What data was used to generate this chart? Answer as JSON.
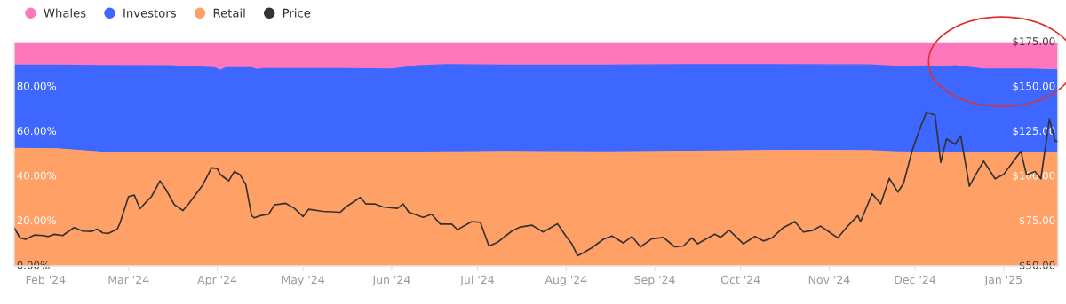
{
  "chart_data": {
    "type": "area",
    "stacked": true,
    "legend": "top left",
    "grid": false,
    "x": [
      "2024-01-21",
      "2024-02-05",
      "2024-02-20",
      "2024-03-15",
      "2024-03-31",
      "2024-04-02",
      "2024-04-04",
      "2024-04-13",
      "2024-04-15",
      "2024-04-17",
      "2024-05-15",
      "2024-05-25",
      "2024-06-01",
      "2024-06-10",
      "2024-06-20",
      "2024-07-10",
      "2024-08-15",
      "2024-09-15",
      "2024-10-15",
      "2024-11-15",
      "2024-11-25",
      "2024-12-05",
      "2024-12-10",
      "2024-12-15",
      "2024-12-25",
      "2025-01-10",
      "2025-01-20"
    ],
    "series": [
      {
        "name": "Retail",
        "color": "#ffa066",
        "values": [
          52.6,
          52.4,
          51.0,
          50.8,
          50.5,
          50.5,
          50.6,
          50.6,
          50.7,
          50.7,
          50.9,
          50.9,
          50.9,
          50.9,
          51.0,
          51.2,
          51.0,
          51.3,
          51.7,
          51.6,
          51.0,
          50.8,
          50.8,
          50.8,
          50.8,
          50.8,
          50.8
        ]
      },
      {
        "name": "Investors",
        "color": "#3d67ff",
        "values": [
          37.2,
          37.4,
          38.6,
          38.7,
          38.1,
          36.9,
          38.0,
          38.0,
          37.1,
          37.5,
          37.3,
          37.2,
          37.1,
          38.6,
          39.0,
          38.6,
          38.8,
          38.7,
          38.3,
          38.3,
          38.2,
          38.6,
          38.2,
          38.7,
          37.2,
          37.2,
          36.8
        ]
      },
      {
        "name": "Whales",
        "color": "#ff77bb",
        "values": [
          10.2,
          10.2,
          10.4,
          10.5,
          11.4,
          12.6,
          11.4,
          11.4,
          12.2,
          11.8,
          11.8,
          11.9,
          12.0,
          10.5,
          10.0,
          10.2,
          10.2,
          10.0,
          10.0,
          10.1,
          10.8,
          10.6,
          11.0,
          10.5,
          12.0,
          12.0,
          12.4
        ]
      },
      {
        "name": "Price",
        "type": "line",
        "axis": "y2",
        "color": "#333333",
        "x": [
          "2024-01-21",
          "2024-01-23",
          "2024-01-25",
          "2024-01-28",
          "2024-01-31",
          "2024-02-02",
          "2024-02-04",
          "2024-02-07",
          "2024-02-10",
          "2024-02-11",
          "2024-02-14",
          "2024-02-17",
          "2024-02-19",
          "2024-02-21",
          "2024-02-23",
          "2024-02-26",
          "2024-02-27",
          "2024-03-01",
          "2024-03-03",
          "2024-03-05",
          "2024-03-07",
          "2024-03-09",
          "2024-03-12",
          "2024-03-14",
          "2024-03-17",
          "2024-03-20",
          "2024-03-22",
          "2024-03-27",
          "2024-03-30",
          "2024-04-01",
          "2024-04-02",
          "2024-04-05",
          "2024-04-07",
          "2024-04-09",
          "2024-04-11",
          "2024-04-13",
          "2024-04-14",
          "2024-04-16",
          "2024-04-19",
          "2024-04-21",
          "2024-04-25",
          "2024-04-28",
          "2024-05-01",
          "2024-05-03",
          "2024-05-08",
          "2024-05-14",
          "2024-05-16",
          "2024-05-21",
          "2024-05-23",
          "2024-05-26",
          "2024-05-29",
          "2024-06-03",
          "2024-06-05",
          "2024-06-07",
          "2024-06-12",
          "2024-06-15",
          "2024-06-18",
          "2024-06-22",
          "2024-06-24",
          "2024-06-29",
          "2024-07-02",
          "2024-07-05",
          "2024-07-08",
          "2024-07-13",
          "2024-07-16",
          "2024-07-20",
          "2024-07-24",
          "2024-07-29",
          "2024-08-01",
          "2024-08-03",
          "2024-08-05",
          "2024-08-07",
          "2024-08-10",
          "2024-08-14",
          "2024-08-17",
          "2024-08-21",
          "2024-08-24",
          "2024-08-27",
          "2024-08-31",
          "2024-09-04",
          "2024-09-08",
          "2024-09-11",
          "2024-09-14",
          "2024-09-16",
          "2024-09-19",
          "2024-09-22",
          "2024-09-24",
          "2024-09-27",
          "2024-10-02",
          "2024-10-06",
          "2024-10-09",
          "2024-10-12",
          "2024-10-16",
          "2024-10-20",
          "2024-10-23",
          "2024-10-26",
          "2024-10-29",
          "2024-11-01",
          "2024-11-04",
          "2024-11-07",
          "2024-11-11",
          "2024-11-12",
          "2024-11-16",
          "2024-11-19",
          "2024-11-22",
          "2024-11-25",
          "2024-11-27",
          "2024-11-30",
          "2024-12-03",
          "2024-12-05",
          "2024-12-08",
          "2024-12-10",
          "2024-12-12",
          "2024-12-15",
          "2024-12-17",
          "2024-12-20",
          "2024-12-22",
          "2024-12-25",
          "2024-12-29",
          "2025-01-01",
          "2025-01-07",
          "2025-01-09",
          "2025-01-12",
          "2025-01-14",
          "2025-01-17",
          "2025-01-19",
          "2025-01-20"
        ],
        "values": [
          71.5,
          65.7,
          64.9,
          67.3,
          67.0,
          66.5,
          67.7,
          67.0,
          70.5,
          71.5,
          69.5,
          69.3,
          70.6,
          68.5,
          68.2,
          70.6,
          73.9,
          88.8,
          89.6,
          82.0,
          85.5,
          88.8,
          97.5,
          92.9,
          84.3,
          81.0,
          84.7,
          95.4,
          104.8,
          104.5,
          101.2,
          97.5,
          102.8,
          100.9,
          95.4,
          78.1,
          76.9,
          78.1,
          78.9,
          84.2,
          85.0,
          82.2,
          77.6,
          81.7,
          80.5,
          80.0,
          83.0,
          88.3,
          84.7,
          84.7,
          83.0,
          82.2,
          84.7,
          80.0,
          77.2,
          78.9,
          73.4,
          73.4,
          70.3,
          74.8,
          74.4,
          61.2,
          63.2,
          69.5,
          71.8,
          72.8,
          69.0,
          73.6,
          66.5,
          62.4,
          55.8,
          57.4,
          60.2,
          64.9,
          66.8,
          62.9,
          66.5,
          60.7,
          65.2,
          66.0,
          60.7,
          61.2,
          65.7,
          62.4,
          65.2,
          67.8,
          66.0,
          70.1,
          62.4,
          66.5,
          64.0,
          65.7,
          71.5,
          74.8,
          69.0,
          69.8,
          72.3,
          69.0,
          65.7,
          71.5,
          78.1,
          74.8,
          90.4,
          84.7,
          99.0,
          91.3,
          96.2,
          114.4,
          127.9,
          135.9,
          134.2,
          107.8,
          121.0,
          118.0,
          122.6,
          94.6,
          100.4,
          108.6,
          98.7,
          101.2,
          114.1,
          100.9,
          102.8,
          98.7,
          132.2,
          119.7,
          119.7
        ]
      }
    ],
    "xlim": [
      "2024-01-21",
      "2025-01-20"
    ],
    "xticks": [
      {
        "value": "2024-02-01",
        "label": "Feb '24"
      },
      {
        "value": "2024-03-01",
        "label": "Mar '24"
      },
      {
        "value": "2024-04-01",
        "label": "Apr '24"
      },
      {
        "value": "2024-05-01",
        "label": "May '24"
      },
      {
        "value": "2024-06-01",
        "label": "Jun '24"
      },
      {
        "value": "2024-07-01",
        "label": "Jul '24"
      },
      {
        "value": "2024-08-01",
        "label": "Aug '24"
      },
      {
        "value": "2024-09-01",
        "label": "Sep '24"
      },
      {
        "value": "2024-10-01",
        "label": "Oct '24"
      },
      {
        "value": "2024-11-01",
        "label": "Nov '24"
      },
      {
        "value": "2024-12-01",
        "label": "Dec '24"
      },
      {
        "value": "2025-01-01",
        "label": "Jan '25"
      }
    ],
    "ylim": [
      0,
      100
    ],
    "yticks": [
      {
        "value": 0,
        "label": "0.00%"
      },
      {
        "value": 20,
        "label": "20.00%"
      },
      {
        "value": 40,
        "label": "40.00%"
      },
      {
        "value": 60,
        "label": "60.00%"
      },
      {
        "value": 80,
        "label": "80.00%"
      }
    ],
    "y2lim": [
      50,
      175
    ],
    "y2ticks": [
      {
        "value": 50,
        "label": "$50.00"
      },
      {
        "value": 75,
        "label": "$75.00"
      },
      {
        "value": 100,
        "label": "$100.00"
      },
      {
        "value": 125,
        "label": "$125.00"
      },
      {
        "value": 150,
        "label": "$150.00"
      },
      {
        "value": 175,
        "label": "$175.00"
      }
    ]
  }
}
